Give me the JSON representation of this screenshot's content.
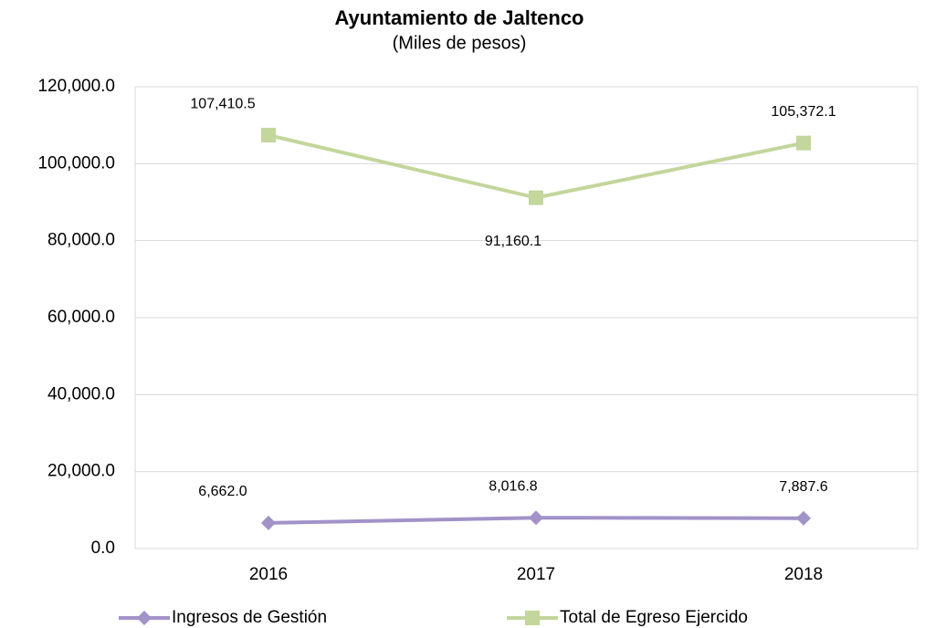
{
  "chart_data": {
    "type": "line",
    "title": "Ayuntamiento de Jaltenco",
    "subtitle": "(Miles de pesos)",
    "categories": [
      "2016",
      "2017",
      "2018"
    ],
    "series": [
      {
        "name": "Ingresos de Gestión",
        "color": "#a192c8",
        "marker": "diamond",
        "values": [
          6662.0,
          8016.8,
          7887.6
        ],
        "value_labels": [
          "6,662.0",
          "8,016.8",
          "7,887.6"
        ]
      },
      {
        "name": "Total de Egreso Ejercido",
        "color": "#c3d69b",
        "marker": "square",
        "values": [
          107410.5,
          91160.1,
          105372.1
        ],
        "value_labels": [
          "107,410.5",
          "91,160.1",
          "105,372.1"
        ]
      }
    ],
    "ylim": [
      0,
      120000
    ],
    "yticks": [
      {
        "value": 0,
        "label": "0.0"
      },
      {
        "value": 20000,
        "label": "20,000.0"
      },
      {
        "value": 40000,
        "label": "40,000.0"
      },
      {
        "value": 60000,
        "label": "60,000.0"
      },
      {
        "value": 80000,
        "label": "80,000.0"
      },
      {
        "value": 100000,
        "label": "100,000.0"
      },
      {
        "value": 120000,
        "label": "120,000.0"
      }
    ],
    "grid": true,
    "legend": "bottom"
  }
}
